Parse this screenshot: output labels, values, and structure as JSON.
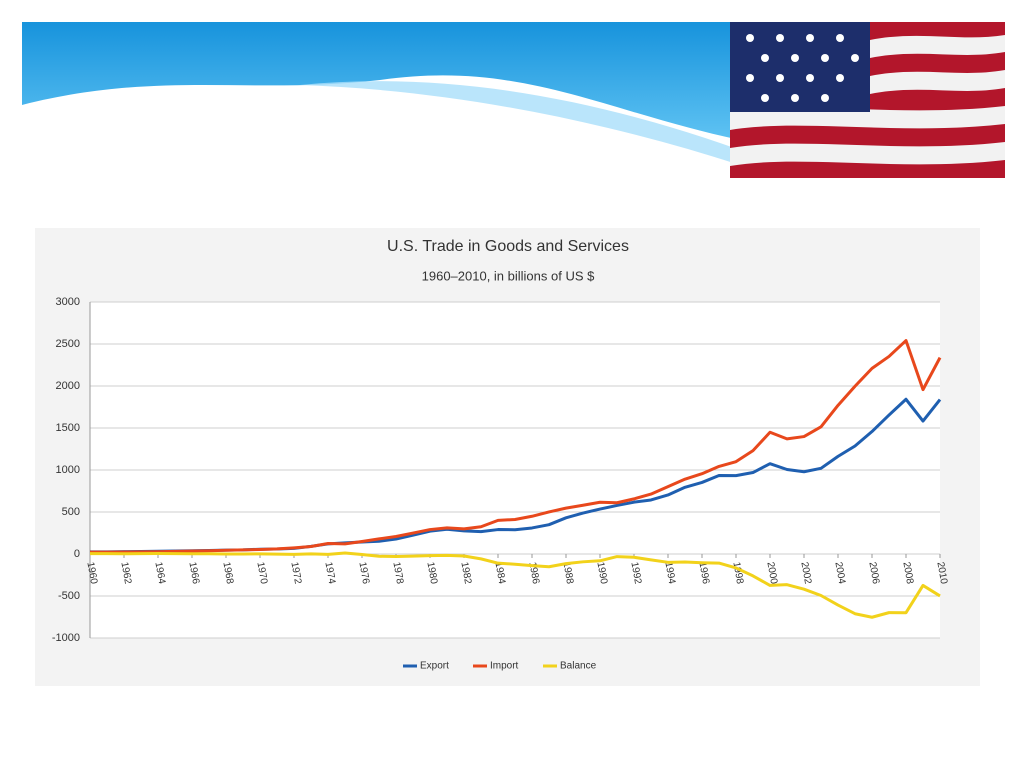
{
  "chart_data": {
    "type": "line",
    "title": "U.S. Trade in Goods and Services",
    "subtitle": "1960–2010, in billions of US $",
    "x": [
      1960,
      1961,
      1962,
      1963,
      1964,
      1965,
      1966,
      1967,
      1968,
      1969,
      1970,
      1971,
      1972,
      1973,
      1974,
      1975,
      1976,
      1977,
      1978,
      1979,
      1980,
      1981,
      1982,
      1983,
      1984,
      1985,
      1986,
      1987,
      1988,
      1989,
      1990,
      1991,
      1992,
      1993,
      1994,
      1995,
      1996,
      1997,
      1998,
      1999,
      2000,
      2001,
      2002,
      2003,
      2004,
      2005,
      2006,
      2007,
      2008,
      2009,
      2010
    ],
    "series": [
      {
        "name": "Export",
        "color": "#1f5fb0",
        "values": [
          26,
          26,
          28,
          30,
          33,
          35,
          39,
          41,
          46,
          49,
          57,
          60,
          67,
          91,
          121,
          133,
          143,
          152,
          178,
          224,
          272,
          294,
          275,
          266,
          291,
          289,
          310,
          349,
          431,
          487,
          535,
          578,
          617,
          643,
          703,
          794,
          852,
          935,
          933,
          970,
          1075,
          1006,
          979,
          1020,
          1162,
          1286,
          1458,
          1654,
          1842,
          1583,
          1839
        ]
      },
      {
        "name": "Import",
        "color": "#e8481c",
        "values": [
          22,
          22,
          24,
          25,
          27,
          31,
          36,
          39,
          45,
          49,
          54,
          61,
          73,
          89,
          125,
          120,
          149,
          180,
          208,
          249,
          291,
          311,
          299,
          324,
          400,
          411,
          449,
          501,
          546,
          580,
          616,
          610,
          656,
          713,
          802,
          891,
          956,
          1043,
          1099,
          1231,
          1449,
          1371,
          1398,
          1514,
          1770,
          1997,
          2210,
          2352,
          2541,
          1957,
          2338
        ]
      },
      {
        "name": "Balance",
        "color": "#f2d21b",
        "values": [
          4,
          4,
          3,
          4,
          6,
          5,
          3,
          3,
          0,
          0,
          2,
          -1,
          -5,
          2,
          -4,
          12,
          -6,
          -27,
          -30,
          -25,
          -19,
          -16,
          -24,
          -58,
          -109,
          -122,
          -139,
          -152,
          -115,
          -93,
          -81,
          -31,
          -39,
          -70,
          -99,
          -96,
          -104,
          -108,
          -166,
          -261,
          -374,
          -365,
          -419,
          -494,
          -608,
          -711,
          -753,
          -698,
          -699,
          -374,
          -499
        ]
      }
    ],
    "xlim": [
      1960,
      2010
    ],
    "xticks": [
      1960,
      1962,
      1964,
      1966,
      1968,
      1970,
      1972,
      1974,
      1976,
      1978,
      1980,
      1982,
      1984,
      1986,
      1988,
      1990,
      1992,
      1994,
      1996,
      1998,
      2000,
      2002,
      2004,
      2006,
      2008,
      2010
    ],
    "ylim": [
      -1000,
      3000
    ],
    "yticks": [
      -1000,
      -500,
      0,
      500,
      1000,
      1500,
      2000,
      2500,
      3000
    ],
    "grid": true,
    "legend": "bottom"
  }
}
